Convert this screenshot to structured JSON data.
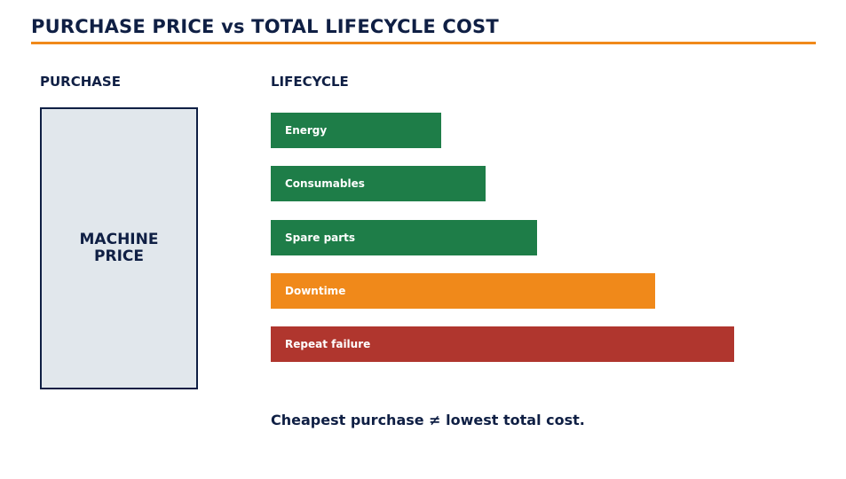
{
  "title": "PURCHASE PRICE vs TOTAL LIFECYCLE COST",
  "purchase": {
    "heading": "PURCHASE",
    "box_line1": "MACHINE",
    "box_line2": "PRICE"
  },
  "lifecycle": {
    "heading": "LIFECYCLE",
    "bars": [
      {
        "label": "Energy",
        "relative_length": 0.367,
        "color": "#1e7d48"
      },
      {
        "label": "Consumables",
        "relative_length": 0.464,
        "color": "#1e7d48"
      },
      {
        "label": "Spare parts",
        "relative_length": 0.574,
        "color": "#1e7d48"
      },
      {
        "label": "Downtime",
        "relative_length": 0.829,
        "color": "#f0891a"
      },
      {
        "label": "Repeat failure",
        "relative_length": 1.0,
        "color": "#b0362e"
      }
    ]
  },
  "tagline": "Cheapest purchase ≠ lowest total cost.",
  "colors": {
    "navy": "#0f1f44",
    "accent_orange": "#f0891a",
    "green": "#1e7d48",
    "red": "#b0362e",
    "box_fill": "#e1e7ec"
  }
}
